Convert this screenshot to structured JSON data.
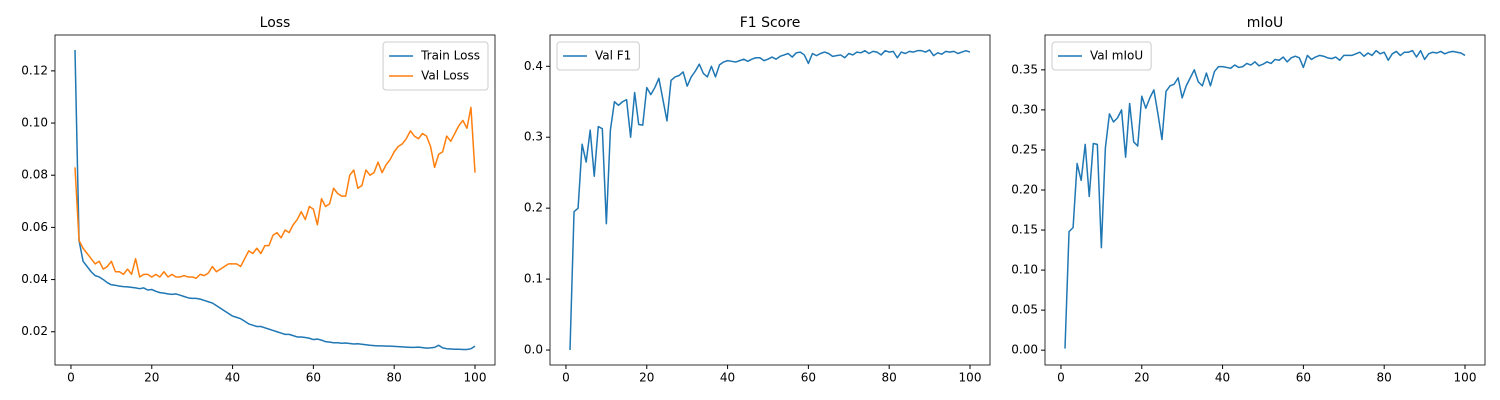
{
  "chart_data": [
    {
      "type": "line",
      "title": "Loss",
      "x": [
        1,
        2,
        3,
        4,
        5,
        6,
        7,
        8,
        9,
        10,
        11,
        12,
        13,
        14,
        15,
        16,
        17,
        18,
        19,
        20,
        21,
        22,
        23,
        24,
        25,
        26,
        27,
        28,
        29,
        30,
        31,
        32,
        33,
        34,
        35,
        36,
        37,
        38,
        39,
        40,
        41,
        42,
        43,
        44,
        45,
        46,
        47,
        48,
        49,
        50,
        51,
        52,
        53,
        54,
        55,
        56,
        57,
        58,
        59,
        60,
        61,
        62,
        63,
        64,
        65,
        66,
        67,
        68,
        69,
        70,
        71,
        72,
        73,
        74,
        75,
        76,
        77,
        78,
        79,
        80,
        81,
        82,
        83,
        84,
        85,
        86,
        87,
        88,
        89,
        90,
        91,
        92,
        93,
        94,
        95,
        96,
        97,
        98,
        99,
        100
      ],
      "series": [
        {
          "name": "Train Loss",
          "color": "#1f77b4",
          "values": [
            0.128,
            0.055,
            0.047,
            0.045,
            0.043,
            0.0415,
            0.041,
            0.04,
            0.0388,
            0.038,
            0.0378,
            0.0375,
            0.0373,
            0.0372,
            0.037,
            0.0368,
            0.0365,
            0.0368,
            0.036,
            0.0362,
            0.0355,
            0.035,
            0.0348,
            0.0345,
            0.0343,
            0.0345,
            0.034,
            0.0335,
            0.033,
            0.0328,
            0.0328,
            0.0325,
            0.032,
            0.0315,
            0.031,
            0.03,
            0.029,
            0.028,
            0.027,
            0.026,
            0.0255,
            0.025,
            0.024,
            0.023,
            0.0225,
            0.022,
            0.022,
            0.0215,
            0.021,
            0.0205,
            0.02,
            0.0195,
            0.019,
            0.019,
            0.0185,
            0.018,
            0.018,
            0.0178,
            0.0175,
            0.017,
            0.0172,
            0.0168,
            0.0162,
            0.016,
            0.0158,
            0.0158,
            0.0156,
            0.0157,
            0.0155,
            0.0153,
            0.0154,
            0.0152,
            0.015,
            0.0148,
            0.0147,
            0.0146,
            0.0146,
            0.0145,
            0.0145,
            0.0144,
            0.0143,
            0.0142,
            0.0141,
            0.014,
            0.014,
            0.0141,
            0.0139,
            0.0137,
            0.0138,
            0.014,
            0.0148,
            0.0138,
            0.0135,
            0.0134,
            0.0133,
            0.0133,
            0.0132,
            0.0132,
            0.0135,
            0.0145
          ]
        },
        {
          "name": "Val Loss",
          "color": "#ff7f0e",
          "values": [
            0.083,
            0.055,
            0.052,
            0.05,
            0.048,
            0.046,
            0.047,
            0.044,
            0.045,
            0.047,
            0.043,
            0.043,
            0.042,
            0.044,
            0.042,
            0.048,
            0.041,
            0.042,
            0.042,
            0.041,
            0.042,
            0.041,
            0.043,
            0.041,
            0.042,
            0.041,
            0.041,
            0.0415,
            0.041,
            0.041,
            0.0405,
            0.042,
            0.0415,
            0.0425,
            0.045,
            0.043,
            0.044,
            0.045,
            0.046,
            0.046,
            0.046,
            0.045,
            0.048,
            0.051,
            0.05,
            0.052,
            0.05,
            0.053,
            0.053,
            0.057,
            0.058,
            0.056,
            0.059,
            0.058,
            0.061,
            0.063,
            0.066,
            0.063,
            0.068,
            0.067,
            0.061,
            0.071,
            0.068,
            0.069,
            0.075,
            0.073,
            0.072,
            0.072,
            0.08,
            0.082,
            0.075,
            0.076,
            0.082,
            0.08,
            0.081,
            0.085,
            0.081,
            0.084,
            0.086,
            0.089,
            0.091,
            0.092,
            0.094,
            0.097,
            0.095,
            0.094,
            0.096,
            0.095,
            0.091,
            0.083,
            0.088,
            0.089,
            0.095,
            0.093,
            0.096,
            0.099,
            0.101,
            0.098,
            0.106,
            0.081
          ]
        }
      ],
      "xlim": [
        -3.95,
        104.95
      ],
      "xticks": [
        0,
        20,
        40,
        60,
        80,
        100
      ],
      "ylim": [
        0.00725,
        0.13375
      ],
      "yticks": [
        0.02,
        0.04,
        0.06,
        0.08,
        {
          "value": 0.1,
          "label": "0.10"
        },
        0.12
      ],
      "grid": false,
      "legend": "upper right"
    },
    {
      "type": "line",
      "title": "F1 Score",
      "x": [
        1,
        2,
        3,
        4,
        5,
        6,
        7,
        8,
        9,
        10,
        11,
        12,
        13,
        14,
        15,
        16,
        17,
        18,
        19,
        20,
        21,
        22,
        23,
        24,
        25,
        26,
        27,
        28,
        29,
        30,
        31,
        32,
        33,
        34,
        35,
        36,
        37,
        38,
        39,
        40,
        41,
        42,
        43,
        44,
        45,
        46,
        47,
        48,
        49,
        50,
        51,
        52,
        53,
        54,
        55,
        56,
        57,
        58,
        59,
        60,
        61,
        62,
        63,
        64,
        65,
        66,
        67,
        68,
        69,
        70,
        71,
        72,
        73,
        74,
        75,
        76,
        77,
        78,
        79,
        80,
        81,
        82,
        83,
        84,
        85,
        86,
        87,
        88,
        89,
        90,
        91,
        92,
        93,
        94,
        95,
        96,
        97,
        98,
        99,
        100
      ],
      "series": [
        {
          "name": "Val F1",
          "color": "#1f77b4",
          "values": [
            0.0,
            0.195,
            0.2,
            0.29,
            0.265,
            0.31,
            0.245,
            0.315,
            0.312,
            0.178,
            0.31,
            0.35,
            0.345,
            0.35,
            0.353,
            0.3,
            0.363,
            0.318,
            0.317,
            0.37,
            0.36,
            0.37,
            0.383,
            0.353,
            0.323,
            0.38,
            0.385,
            0.387,
            0.392,
            0.372,
            0.385,
            0.393,
            0.403,
            0.39,
            0.385,
            0.4,
            0.385,
            0.402,
            0.406,
            0.408,
            0.407,
            0.406,
            0.408,
            0.41,
            0.407,
            0.41,
            0.412,
            0.412,
            0.408,
            0.41,
            0.413,
            0.41,
            0.414,
            0.416,
            0.418,
            0.413,
            0.419,
            0.42,
            0.416,
            0.404,
            0.418,
            0.415,
            0.418,
            0.42,
            0.418,
            0.414,
            0.415,
            0.416,
            0.412,
            0.418,
            0.416,
            0.42,
            0.419,
            0.422,
            0.418,
            0.421,
            0.42,
            0.416,
            0.422,
            0.42,
            0.421,
            0.412,
            0.42,
            0.418,
            0.421,
            0.42,
            0.422,
            0.422,
            0.42,
            0.423,
            0.415,
            0.419,
            0.417,
            0.421,
            0.42,
            0.421,
            0.418,
            0.42,
            0.422,
            0.42
          ]
        }
      ],
      "xlim": [
        -3.95,
        104.95
      ],
      "xticks": [
        0,
        20,
        40,
        60,
        80,
        100
      ],
      "ylim": [
        -0.0211,
        0.4441
      ],
      "yticks": [
        {
          "value": 0,
          "label": "0.0"
        },
        0.1,
        0.2,
        0.3,
        0.4
      ],
      "grid": false,
      "legend": "upper left"
    },
    {
      "type": "line",
      "title": "mIoU",
      "x": [
        1,
        2,
        3,
        4,
        5,
        6,
        7,
        8,
        9,
        10,
        11,
        12,
        13,
        14,
        15,
        16,
        17,
        18,
        19,
        20,
        21,
        22,
        23,
        24,
        25,
        26,
        27,
        28,
        29,
        30,
        31,
        32,
        33,
        34,
        35,
        36,
        37,
        38,
        39,
        40,
        41,
        42,
        43,
        44,
        45,
        46,
        47,
        48,
        49,
        50,
        51,
        52,
        53,
        54,
        55,
        56,
        57,
        58,
        59,
        60,
        61,
        62,
        63,
        64,
        65,
        66,
        67,
        68,
        69,
        70,
        71,
        72,
        73,
        74,
        75,
        76,
        77,
        78,
        79,
        80,
        81,
        82,
        83,
        84,
        85,
        86,
        87,
        88,
        89,
        90,
        91,
        92,
        93,
        94,
        95,
        96,
        97,
        98,
        99,
        100
      ],
      "series": [
        {
          "name": "Val mIoU",
          "color": "#1f77b4",
          "values": [
            0.002,
            0.148,
            0.153,
            0.233,
            0.212,
            0.257,
            0.192,
            0.258,
            0.257,
            0.128,
            0.253,
            0.295,
            0.285,
            0.29,
            0.3,
            0.241,
            0.308,
            0.26,
            0.255,
            0.317,
            0.302,
            0.315,
            0.325,
            0.295,
            0.263,
            0.323,
            0.33,
            0.332,
            0.34,
            0.315,
            0.33,
            0.34,
            0.35,
            0.335,
            0.33,
            0.346,
            0.33,
            0.348,
            0.354,
            0.354,
            0.353,
            0.352,
            0.356,
            0.353,
            0.354,
            0.358,
            0.356,
            0.36,
            0.355,
            0.357,
            0.36,
            0.358,
            0.363,
            0.362,
            0.366,
            0.36,
            0.365,
            0.367,
            0.365,
            0.353,
            0.368,
            0.363,
            0.366,
            0.368,
            0.367,
            0.365,
            0.364,
            0.366,
            0.362,
            0.368,
            0.368,
            0.368,
            0.37,
            0.372,
            0.367,
            0.371,
            0.368,
            0.374,
            0.37,
            0.372,
            0.362,
            0.37,
            0.373,
            0.368,
            0.372,
            0.372,
            0.374,
            0.366,
            0.374,
            0.363,
            0.37,
            0.372,
            0.371,
            0.373,
            0.37,
            0.372,
            0.373,
            0.372,
            0.371,
            0.368
          ]
        }
      ],
      "xlim": [
        -3.95,
        104.95
      ],
      "xticks": [
        0,
        20,
        40,
        60,
        80,
        100
      ],
      "ylim": [
        -0.0185,
        0.3935
      ],
      "yticks": [
        {
          "value": 0,
          "label": "0.00"
        },
        0.05,
        {
          "value": 0.1,
          "label": "0.10"
        },
        0.15,
        {
          "value": 0.2,
          "label": "0.20"
        },
        0.25,
        {
          "value": 0.3,
          "label": "0.30"
        },
        0.35
      ],
      "grid": false,
      "legend": "upper left"
    }
  ]
}
